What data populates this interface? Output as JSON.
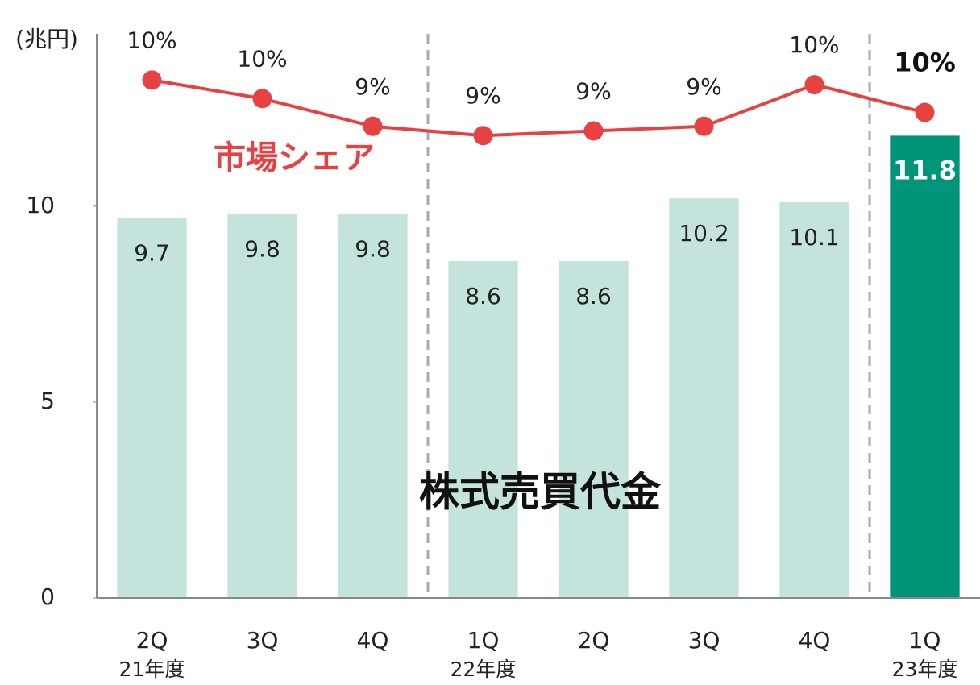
{
  "chart_data": {
    "type": "bar",
    "y_unit": "(兆円)",
    "categories": [
      "2Q",
      "3Q",
      "4Q",
      "1Q",
      "2Q",
      "3Q",
      "4Q",
      "1Q"
    ],
    "year_labels": [
      "21年度",
      null,
      null,
      "22年度",
      null,
      null,
      null,
      "23年度"
    ],
    "series": [
      {
        "name": "株式売買代金",
        "type": "bar",
        "colors": [
          "#c5e3dd",
          "#c5e3dd",
          "#c5e3dd",
          "#c5e3dd",
          "#c5e3dd",
          "#c5e3dd",
          "#c5e3dd",
          "#009479"
        ],
        "label_colors": [
          "#222222",
          "#222222",
          "#222222",
          "#222222",
          "#222222",
          "#222222",
          "#222222",
          "#ffffff"
        ],
        "label_bold": [
          false,
          false,
          false,
          false,
          false,
          false,
          false,
          true
        ],
        "values": [
          9.7,
          9.8,
          9.8,
          8.6,
          8.6,
          10.2,
          10.1,
          11.8
        ]
      },
      {
        "name": "市場シェア",
        "type": "line",
        "axis": "y2",
        "color": "#e84142",
        "label_bold": [
          false,
          false,
          false,
          false,
          false,
          false,
          false,
          true
        ],
        "values": [
          10.4,
          10.0,
          9.4,
          9.2,
          9.3,
          9.4,
          10.3,
          9.7
        ],
        "value_labels": [
          "10%",
          "10%",
          "9%",
          "9%",
          "9%",
          "9%",
          "10%",
          "10%"
        ]
      }
    ],
    "ylim": [
      0,
      14.4
    ],
    "yticks": [
      0,
      5,
      10
    ],
    "y2lim": [
      -0.8,
      11.4
    ],
    "group_dividers": [
      3,
      7
    ]
  }
}
